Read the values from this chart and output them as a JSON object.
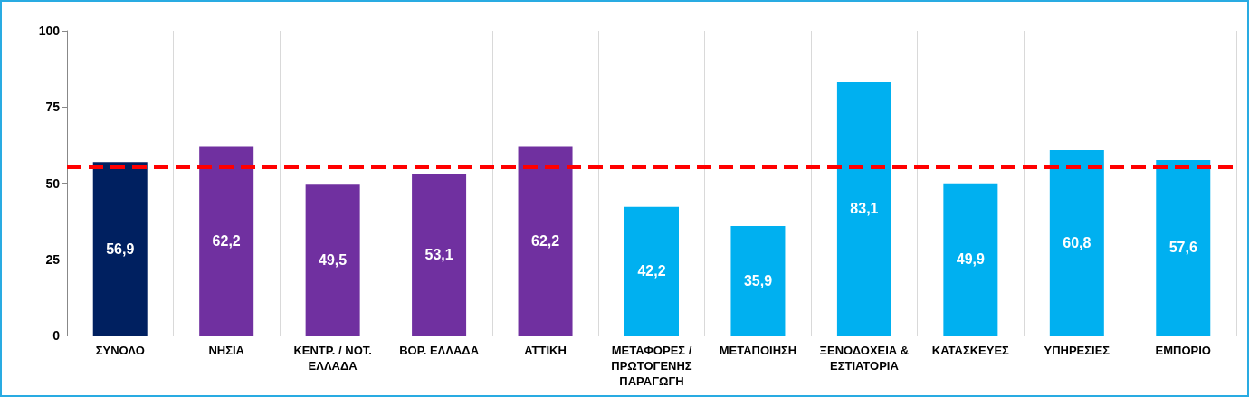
{
  "chart_data": {
    "type": "bar",
    "categories": [
      "ΣΥΝΟΛΟ",
      "ΝΗΣΙΑ",
      "ΚΕΝΤΡ. / ΝΟΤ. ΕΛΛΑΔΑ",
      "ΒΟΡ. ΕΛΛΑΔΑ",
      "ΑΤΤΙΚΗ",
      "ΜΕΤΑΦΟΡΕΣ / ΠΡΩΤΟΓΕΝΗΣ ΠΑΡΑΓΩΓΗ",
      "ΜΕΤΑΠΟΙΗΣΗ",
      "ΞΕΝΟΔΟΧΕΙΑ & ΕΣΤΙΑΤΟΡΙΑ",
      "ΚΑΤΑΣΚΕΥΕΣ",
      "ΥΠΗΡΕΣΙΕΣ",
      "ΕΜΠΟΡΙΟ"
    ],
    "values": [
      56.9,
      62.2,
      49.5,
      53.1,
      62.2,
      42.2,
      35.9,
      83.1,
      49.9,
      60.8,
      57.6
    ],
    "colors": [
      "#002060",
      "#7030a0",
      "#7030a0",
      "#7030a0",
      "#7030a0",
      "#00b0f0",
      "#00b0f0",
      "#00b0f0",
      "#00b0f0",
      "#00b0f0",
      "#00b0f0"
    ],
    "value_labels": [
      "56,9",
      "62,2",
      "49,5",
      "53,1",
      "62,2",
      "42,2",
      "35,9",
      "83,1",
      "49,9",
      "60,8",
      "57,6"
    ],
    "ylim": [
      0,
      100
    ],
    "yticks": [
      0,
      25,
      50,
      75,
      100
    ],
    "grid": "x",
    "ref_lines": [
      {
        "axis": "y",
        "value": 55.4,
        "color": "#ff0000",
        "line_style": "dashed"
      }
    ]
  }
}
